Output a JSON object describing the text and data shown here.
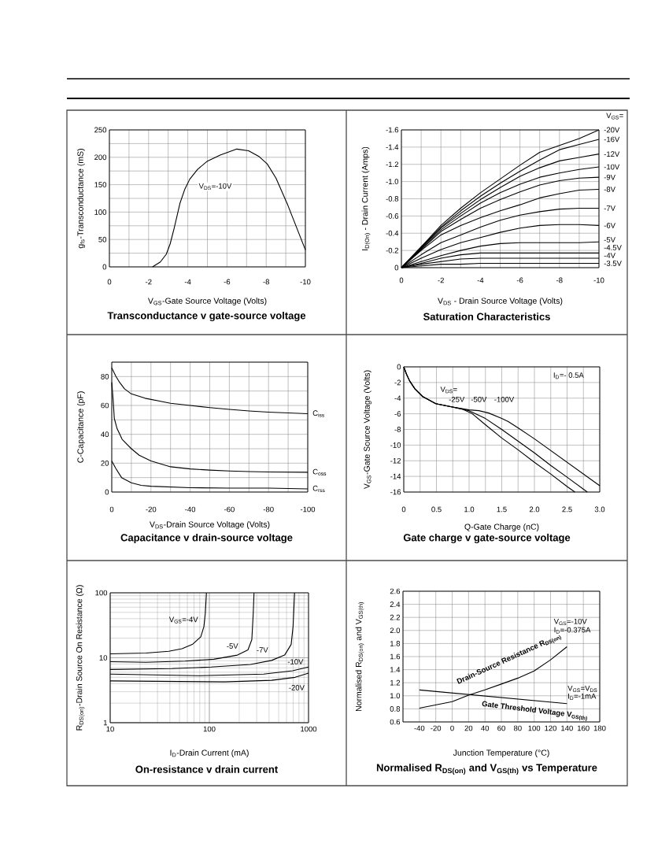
{
  "chart_data": [
    {
      "type": "line",
      "title": "Transconductance v gate-source voltage",
      "xlabel": "V$_{GS}$-Gate Source Voltage (Volts)",
      "ylabel": "g$_{fs}$-Transconductance (mS)",
      "annotations": [
        "V$_{DS}$=-10V"
      ],
      "xlim": [
        0,
        -10
      ],
      "ylim": [
        0,
        250
      ],
      "xticks": [
        0,
        {
          "value": -1,
          "label": null
        },
        -2,
        {
          "value": -3,
          "label": null
        },
        -4,
        {
          "value": -5,
          "label": null
        },
        -6,
        {
          "value": -7,
          "label": null
        },
        -8,
        {
          "value": -9,
          "label": null
        },
        -10
      ],
      "yticks": [
        0,
        {
          "value": 25,
          "label": null
        },
        50,
        {
          "value": 75,
          "label": null
        },
        100,
        {
          "value": 125,
          "label": null
        },
        150,
        {
          "value": 175,
          "label": null
        },
        200,
        {
          "value": 225,
          "label": null
        },
        250
      ],
      "grid": true,
      "color": "#000000",
      "x": [
        -2.2,
        -2.6,
        -2.9,
        -3.1,
        -3.3,
        -3.6,
        -3.85,
        -4.1,
        -4.5,
        -5,
        -5.65,
        -6.5,
        -7.1,
        -7.65,
        -8.05,
        -8.5,
        -9.1,
        -10
      ],
      "values": [
        0,
        9,
        23,
        42,
        70,
        116,
        142,
        160,
        178,
        193,
        204,
        215,
        212,
        201,
        188,
        162,
        113,
        31
      ]
    },
    {
      "type": "line",
      "title": "Saturation Characteristics",
      "xlabel": "V$_{DS}$ - Drain Source Voltage (Volts)",
      "ylabel": "I$_{D(On)}$ - Drain Current (Amps)",
      "annotations": [
        "V$_{GS}$="
      ],
      "xlim": [
        0,
        -10
      ],
      "ylim": [
        0,
        -1.6
      ],
      "xticks": [
        0,
        {
          "value": -1,
          "label": null
        },
        -2,
        {
          "value": -3,
          "label": null
        },
        -4,
        {
          "value": -5,
          "label": null
        },
        -6,
        {
          "value": -7,
          "label": null
        },
        -8,
        {
          "value": -9,
          "label": null
        },
        -10
      ],
      "yticks": [
        0,
        -0.2,
        -0.4,
        -0.6,
        -0.8,
        {
          "value": -1,
          "label": "-1.0"
        },
        -1.2,
        -1.4,
        -1.6
      ],
      "grid": true,
      "x": [
        0,
        -1,
        -2,
        -3,
        -4,
        -5,
        -6,
        -7,
        -8,
        -9,
        -10
      ],
      "series": [
        {
          "name": "-20V",
          "color": "#000000",
          "values": [
            0,
            -0.24,
            -0.49,
            -0.69,
            -0.87,
            -1.03,
            -1.19,
            -1.34,
            -1.42,
            -1.5,
            -1.6
          ]
        },
        {
          "name": "-16V",
          "color": "#000000",
          "values": [
            0,
            -0.24,
            -0.47,
            -0.66,
            -0.83,
            -0.98,
            -1.12,
            -1.25,
            -1.37,
            -1.43,
            -1.49
          ]
        },
        {
          "name": "-12V",
          "color": "#000000",
          "values": [
            0,
            -0.23,
            -0.46,
            -0.63,
            -0.79,
            -0.93,
            -1.06,
            -1.16,
            -1.24,
            -1.28,
            -1.32
          ]
        },
        {
          "name": "-10V",
          "color": "#000000",
          "values": [
            0,
            -0.22,
            -0.44,
            -0.6,
            -0.75,
            -0.87,
            -0.97,
            -1.05,
            -1.1,
            -1.14,
            -1.17
          ]
        },
        {
          "name": "-9V",
          "color": "#000000",
          "values": [
            0,
            -0.21,
            -0.42,
            -0.56,
            -0.69,
            -0.79,
            -0.88,
            -0.96,
            -1.01,
            -1.04,
            -1.05
          ]
        },
        {
          "name": "-8V",
          "color": "#000000",
          "values": [
            0,
            -0.2,
            -0.38,
            -0.49,
            -0.58,
            -0.66,
            -0.73,
            -0.81,
            -0.86,
            -0.9,
            -0.91
          ]
        },
        {
          "name": "-7V",
          "color": "#000000",
          "values": [
            0,
            -0.15,
            -0.29,
            -0.38,
            -0.47,
            -0.55,
            -0.61,
            -0.65,
            -0.68,
            -0.69,
            -0.69
          ]
        },
        {
          "name": "-6V",
          "color": "#000000",
          "values": [
            0,
            -0.11,
            -0.21,
            -0.29,
            -0.35,
            -0.41,
            -0.46,
            -0.49,
            -0.5,
            -0.5,
            -0.49
          ]
        },
        {
          "name": "-5V",
          "color": "#000000",
          "values": [
            0,
            -0.07,
            -0.14,
            -0.2,
            -0.25,
            -0.28,
            -0.29,
            -0.29,
            -0.29,
            -0.29,
            -0.3
          ]
        },
        {
          "name": "-4.5V",
          "color": "#000000",
          "values": [
            0,
            -0.05,
            -0.11,
            -0.15,
            -0.17,
            -0.17,
            -0.17,
            -0.17,
            -0.17,
            -0.17,
            -0.17
          ]
        },
        {
          "name": "-4V",
          "color": "#000000",
          "values": [
            0,
            -0.04,
            -0.07,
            -0.1,
            -0.11,
            -0.11,
            -0.11,
            -0.11,
            -0.11,
            -0.11,
            -0.11
          ]
        },
        {
          "name": "-3.5V",
          "color": "#000000",
          "values": [
            0,
            -0.02,
            -0.04,
            -0.04,
            -0.05,
            -0.05,
            -0.05,
            -0.05,
            -0.05,
            -0.05,
            -0.05
          ]
        }
      ]
    },
    {
      "type": "line",
      "title": "Capacitance v drain-source voltage",
      "xlabel": "V$_{DS}$-Drain Source Voltage (Volts)",
      "ylabel": "C-Capacitance (pF)",
      "xlim": [
        0,
        -100
      ],
      "ylim": [
        0,
        90
      ],
      "xticks": [
        0,
        {
          "value": -10,
          "label": null
        },
        -20,
        {
          "value": -30,
          "label": null
        },
        -40,
        {
          "value": -50,
          "label": null
        },
        -60,
        {
          "value": -70,
          "label": null
        },
        -80,
        {
          "value": -90,
          "label": null
        },
        -100
      ],
      "yticks": [
        0,
        {
          "value": 10,
          "label": null
        },
        20,
        {
          "value": 30,
          "label": null
        },
        40,
        {
          "value": 50,
          "label": null
        },
        60,
        {
          "value": 70,
          "label": null
        },
        80,
        {
          "value": 90,
          "label": null
        }
      ],
      "grid": true,
      "series": [
        {
          "name": "C$_{iss}$",
          "color": "#000000",
          "x": [
            0,
            -2,
            -4,
            -6.5,
            -10,
            -17,
            -30,
            -40,
            -50,
            -60,
            -70,
            -80,
            -90,
            -100
          ],
          "values": [
            86,
            80.5,
            76,
            71.5,
            68,
            65,
            61.5,
            60,
            58.5,
            57.3,
            56.2,
            55.4,
            54.8,
            54.3
          ]
        },
        {
          "name": "C$_{oss}$",
          "color": "#000000",
          "x": [
            0,
            -0.7,
            -1.3,
            -2.7,
            -5.3,
            -10,
            -14,
            -20,
            -30,
            -40,
            -50,
            -60,
            -70,
            -80,
            -100
          ],
          "values": [
            76,
            64,
            51,
            44,
            36.5,
            30,
            25.5,
            21.5,
            17.5,
            16,
            15.2,
            14.6,
            14.2,
            13.9,
            13.7
          ]
        },
        {
          "name": "C$_{rss}$",
          "color": "#000000",
          "x": [
            0,
            -2,
            -5,
            -10,
            -15,
            -20,
            -40,
            -60,
            -80,
            -100
          ],
          "values": [
            21.5,
            16.5,
            10,
            6.4,
            4.6,
            4,
            3,
            2.7,
            2.7,
            2.2
          ]
        }
      ]
    },
    {
      "type": "line",
      "title": "Gate charge v gate-source voltage",
      "xlabel": "Q-Gate Charge (nC)",
      "ylabel": "V$_{GS}$-Gate Source Voltage (Volts)",
      "annotations": [
        "I$_{D}$=- 0.5A",
        "V$_{DS}$="
      ],
      "xlim": [
        0,
        3
      ],
      "ylim": [
        -16,
        0
      ],
      "xticks": [
        0,
        {
          "value": 0.25,
          "label": null
        },
        0.5,
        {
          "value": 0.75,
          "label": null
        },
        {
          "value": 1,
          "label": "1.0"
        },
        {
          "value": 1.25,
          "label": null
        },
        1.5,
        {
          "value": 1.75,
          "label": null
        },
        {
          "value": 2,
          "label": "2.0"
        },
        {
          "value": 2.25,
          "label": null
        },
        2.5,
        {
          "value": 2.75,
          "label": null
        },
        {
          "value": 3,
          "label": "3.0"
        }
      ],
      "yticks": [
        0,
        -2,
        -4,
        -6,
        -8,
        -10,
        -12,
        -14,
        -16
      ],
      "grid": true,
      "series": [
        {
          "name": "-25V",
          "color": "#000000",
          "x": [
            0,
            0.04,
            0.09,
            0.17,
            0.29,
            0.49,
            0.73,
            0.9,
            1.05,
            1.25,
            1.5,
            1.75,
            2,
            2.25,
            2.5,
            2.62
          ],
          "values": [
            0,
            -0.9,
            -1.8,
            -2.8,
            -3.8,
            -4.7,
            -5.1,
            -5.4,
            -6,
            -7.4,
            -9.1,
            -10.6,
            -12.2,
            -13.7,
            -15.3,
            -16
          ]
        },
        {
          "name": "-50V",
          "color": "#000000",
          "x": [
            0,
            0.04,
            0.09,
            0.17,
            0.29,
            0.49,
            0.73,
            1,
            1.25,
            1.5,
            1.75,
            2,
            2.25,
            2.5,
            2.81
          ],
          "values": [
            0,
            -0.9,
            -1.8,
            -2.8,
            -3.8,
            -4.7,
            -5.1,
            -5.6,
            -6.6,
            -8,
            -9.5,
            -11,
            -12.6,
            -14.1,
            -16
          ]
        },
        {
          "name": "-100V",
          "color": "#000000",
          "x": [
            0,
            0.04,
            0.09,
            0.17,
            0.29,
            0.49,
            0.73,
            1,
            1.15,
            1.3,
            1.5,
            1.6,
            1.75,
            2,
            2.25,
            2.5,
            2.75,
            3
          ],
          "values": [
            0,
            -0.9,
            -1.8,
            -2.8,
            -3.8,
            -4.7,
            -5.1,
            -5.5,
            -5.6,
            -5.9,
            -6.6,
            -7,
            -7.8,
            -9.2,
            -10.7,
            -12.2,
            -13.7,
            -15.2
          ]
        }
      ]
    },
    {
      "type": "line",
      "title": "On-resistance v drain current",
      "xlabel": "I$_{D}$-Drain Current (mA)",
      "ylabel": "R$_{DS(on)}$-Drain Source On Resistance (Ω)",
      "log": "xy",
      "xlim": [
        10,
        1000
      ],
      "ylim": [
        1,
        100
      ],
      "xticks": [
        10,
        100,
        1000
      ],
      "yticks": [
        1,
        10,
        100
      ],
      "grid": true,
      "series": [
        {
          "name": "V$_{GS}$=-4V",
          "color": "#000000",
          "x": [
            10,
            23,
            39,
            53,
            68,
            82,
            88,
            91,
            93.5
          ],
          "values": [
            11.5,
            11.8,
            12.6,
            13.8,
            16.2,
            21,
            30,
            48,
            100
          ]
        },
        {
          "name": "-5V",
          "color": "#000000",
          "x": [
            10,
            23,
            57,
            111,
            192,
            245,
            268,
            277,
            282
          ],
          "values": [
            8.7,
            8.5,
            8.9,
            9.5,
            11,
            13.2,
            19,
            48,
            100
          ]
        },
        {
          "name": "-7V",
          "color": "#000000",
          "x": [
            10,
            42,
            104,
            260,
            424,
            574,
            668,
            698,
            724
          ],
          "values": [
            6.6,
            6.8,
            7.2,
            7.9,
            9.1,
            11,
            16,
            30,
            100
          ]
        },
        {
          "name": "-10V",
          "color": "#000000",
          "x": [
            10,
            77,
            353,
            690,
            1000
          ],
          "values": [
            5.6,
            5.3,
            5.6,
            6.3,
            7.2
          ]
        },
        {
          "name": "-20V",
          "color": "#000000",
          "x": [
            10,
            142,
            424,
            733,
            1000
          ],
          "values": [
            4.4,
            4.25,
            4.5,
            5,
            5.8
          ]
        }
      ]
    },
    {
      "type": "line",
      "title": "Normalised R$_{DS(on)}$ and V$_{GS(th)}$ vs Temperature",
      "xlabel": "Junction Temperature (°C)",
      "ylabel": "Normalised R$_{DS(on)}$ and V$_{GS(th)}$",
      "annotations": [
        "V$_{GS}$=-10V",
        "I$_{D}$=-0.375A",
        "V$_{GS}$=V$_{DS}$",
        "I$_{D}$=-1mA"
      ],
      "xlim": [
        -60,
        180
      ],
      "ylim": [
        0.6,
        2.6
      ],
      "xticks": [
        {
          "value": -60,
          "label": null
        },
        -40,
        -20,
        0,
        20,
        40,
        60,
        80,
        100,
        120,
        140,
        160,
        180
      ],
      "yticks": [
        0.6,
        0.8,
        {
          "value": 1,
          "label": "1.0"
        },
        1.2,
        1.4,
        1.6,
        1.8,
        {
          "value": 2,
          "label": "2.0"
        },
        2.2,
        2.4,
        2.6
      ],
      "grid": true,
      "series": [
        {
          "name": "Drain-Source Resistance R$_{DS(on)}$",
          "color": "#000000",
          "x": [
            -40,
            -20,
            0,
            20,
            40,
            60,
            80,
            100,
            120,
            140
          ],
          "values": [
            0.81,
            0.86,
            0.91,
            1.01,
            1.09,
            1.18,
            1.27,
            1.38,
            1.55,
            1.75
          ]
        },
        {
          "name": "Gate Threshold Voltage V$_{GS(th)}$",
          "color": "#000000",
          "x": [
            -40,
            140
          ],
          "values": [
            1.09,
            0.88
          ]
        }
      ]
    }
  ]
}
